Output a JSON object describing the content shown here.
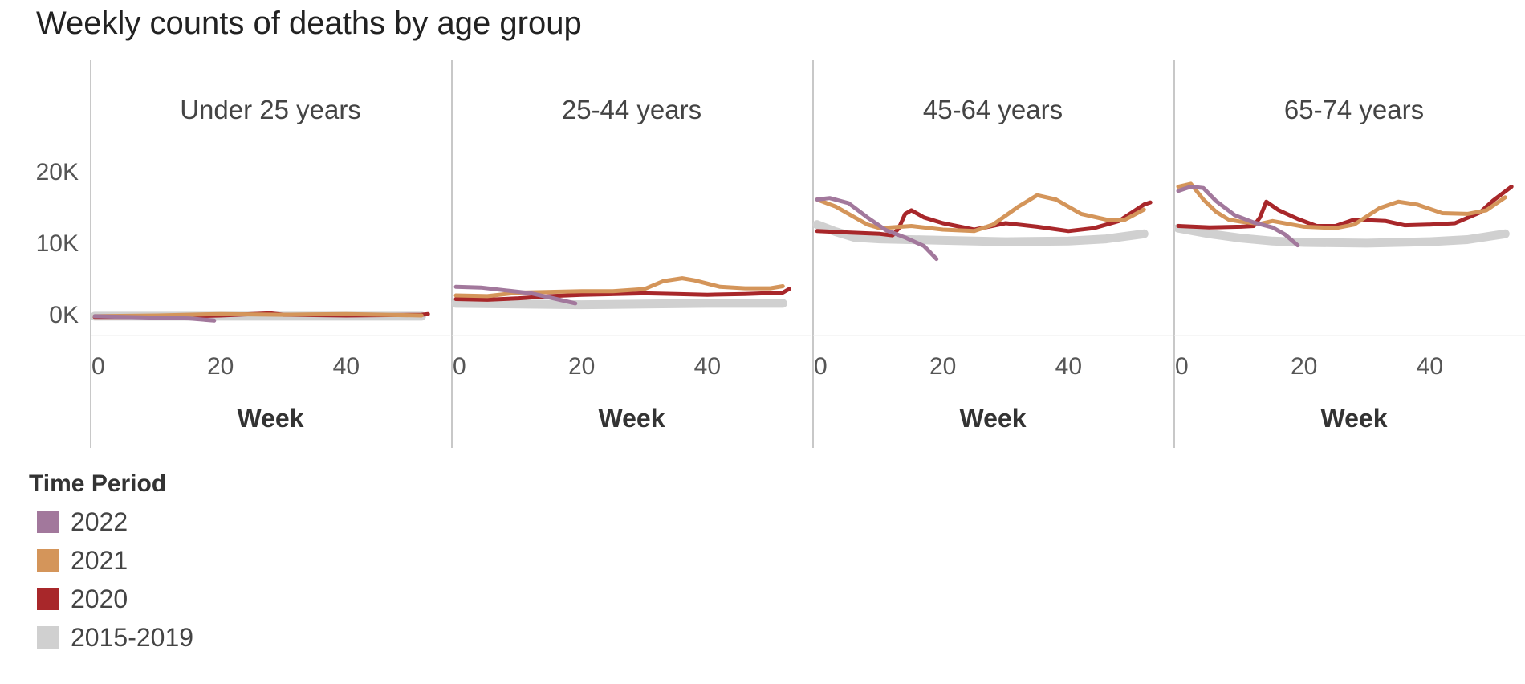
{
  "chart_data": {
    "type": "line",
    "title": "Weekly counts of deaths by age group",
    "xlabel": "Week",
    "xlim": [
      0,
      54
    ],
    "ylim": [
      -3000,
      22000
    ],
    "yticks": [
      0,
      10000,
      20000
    ],
    "ytick_labels": [
      "0K",
      "10K",
      "20K"
    ],
    "xticks": [
      0,
      20,
      40
    ],
    "xtick_labels": [
      "0",
      "20",
      "40"
    ],
    "legend": {
      "title": "Time Period",
      "position": "bottom-left",
      "entries": [
        {
          "label": "2022",
          "color": "#a2789c"
        },
        {
          "label": "2021",
          "color": "#d4955a"
        },
        {
          "label": "2020",
          "color": "#a8272a"
        },
        {
          "label": "2015-2019",
          "color": "#d0d0d0"
        }
      ]
    },
    "panels": [
      {
        "name": "Under 25 years",
        "series": [
          {
            "name": "2015-2019",
            "points": [
              [
                0,
                -300
              ],
              [
                10,
                -300
              ],
              [
                20,
                -300
              ],
              [
                30,
                -300
              ],
              [
                40,
                -300
              ],
              [
                52,
                -300
              ]
            ]
          },
          {
            "name": "2020",
            "points": [
              [
                0,
                -400
              ],
              [
                10,
                -400
              ],
              [
                20,
                -200
              ],
              [
                28,
                100
              ],
              [
                30,
                -100
              ],
              [
                40,
                -200
              ],
              [
                52,
                -100
              ],
              [
                53,
                0
              ]
            ]
          },
          {
            "name": "2021",
            "points": [
              [
                0,
                -300
              ],
              [
                10,
                -200
              ],
              [
                20,
                0
              ],
              [
                30,
                -100
              ],
              [
                40,
                0
              ],
              [
                52,
                -200
              ]
            ]
          },
          {
            "name": "2022",
            "points": [
              [
                0,
                -300
              ],
              [
                10,
                -500
              ],
              [
                15,
                -600
              ],
              [
                19,
                -900
              ]
            ]
          }
        ]
      },
      {
        "name": "25-44 years",
        "series": [
          {
            "name": "2015-2019",
            "points": [
              [
                0,
                1500
              ],
              [
                10,
                1400
              ],
              [
                20,
                1300
              ],
              [
                30,
                1400
              ],
              [
                40,
                1500
              ],
              [
                52,
                1500
              ]
            ]
          },
          {
            "name": "2020",
            "points": [
              [
                0,
                2100
              ],
              [
                5,
                2000
              ],
              [
                10,
                2200
              ],
              [
                15,
                2500
              ],
              [
                20,
                2700
              ],
              [
                30,
                2900
              ],
              [
                35,
                2800
              ],
              [
                40,
                2700
              ],
              [
                46,
                2800
              ],
              [
                52,
                3000
              ],
              [
                53,
                3500
              ]
            ]
          },
          {
            "name": "2021",
            "points": [
              [
                0,
                2600
              ],
              [
                5,
                2500
              ],
              [
                10,
                3000
              ],
              [
                15,
                3100
              ],
              [
                20,
                3200
              ],
              [
                25,
                3200
              ],
              [
                30,
                3500
              ],
              [
                33,
                4600
              ],
              [
                36,
                5000
              ],
              [
                38,
                4700
              ],
              [
                42,
                3800
              ],
              [
                46,
                3600
              ],
              [
                50,
                3600
              ],
              [
                52,
                3900
              ]
            ]
          },
          {
            "name": "2022",
            "points": [
              [
                0,
                3800
              ],
              [
                4,
                3700
              ],
              [
                8,
                3300
              ],
              [
                12,
                2900
              ],
              [
                16,
                2100
              ],
              [
                19,
                1500
              ]
            ]
          }
        ]
      },
      {
        "name": "45-64 years",
        "series": [
          {
            "name": "2015-2019",
            "points": [
              [
                0,
                12500
              ],
              [
                3,
                11500
              ],
              [
                6,
                10700
              ],
              [
                10,
                10500
              ],
              [
                20,
                10300
              ],
              [
                30,
                10100
              ],
              [
                40,
                10200
              ],
              [
                46,
                10500
              ],
              [
                52,
                11200
              ]
            ]
          },
          {
            "name": "2020",
            "points": [
              [
                0,
                11600
              ],
              [
                5,
                11400
              ],
              [
                10,
                11200
              ],
              [
                12,
                11000
              ],
              [
                13,
                12000
              ],
              [
                14,
                14000
              ],
              [
                15,
                14500
              ],
              [
                17,
                13500
              ],
              [
                20,
                12700
              ],
              [
                25,
                11800
              ],
              [
                30,
                12700
              ],
              [
                35,
                12200
              ],
              [
                40,
                11600
              ],
              [
                44,
                12000
              ],
              [
                48,
                13000
              ],
              [
                52,
                15300
              ],
              [
                53,
                15600
              ]
            ]
          },
          {
            "name": "2021",
            "points": [
              [
                0,
                16000
              ],
              [
                3,
                15000
              ],
              [
                6,
                13500
              ],
              [
                8,
                12500
              ],
              [
                10,
                12000
              ],
              [
                15,
                12300
              ],
              [
                20,
                11800
              ],
              [
                25,
                11600
              ],
              [
                28,
                12500
              ],
              [
                32,
                15000
              ],
              [
                35,
                16600
              ],
              [
                38,
                16000
              ],
              [
                42,
                14000
              ],
              [
                46,
                13200
              ],
              [
                49,
                13200
              ],
              [
                52,
                14600
              ]
            ]
          },
          {
            "name": "2022",
            "points": [
              [
                0,
                16000
              ],
              [
                2,
                16200
              ],
              [
                5,
                15500
              ],
              [
                8,
                13500
              ],
              [
                11,
                11700
              ],
              [
                14,
                10700
              ],
              [
                17,
                9500
              ],
              [
                19,
                7700
              ]
            ]
          }
        ]
      },
      {
        "name": "65-74 years",
        "series": [
          {
            "name": "2015-2019",
            "points": [
              [
                0,
                12000
              ],
              [
                5,
                11200
              ],
              [
                10,
                10600
              ],
              [
                15,
                10200
              ],
              [
                20,
                10000
              ],
              [
                30,
                9900
              ],
              [
                40,
                10100
              ],
              [
                46,
                10400
              ],
              [
                52,
                11200
              ]
            ]
          },
          {
            "name": "2020",
            "points": [
              [
                0,
                12300
              ],
              [
                5,
                12100
              ],
              [
                10,
                12200
              ],
              [
                12,
                12300
              ],
              [
                13,
                13500
              ],
              [
                14,
                15700
              ],
              [
                16,
                14500
              ],
              [
                19,
                13300
              ],
              [
                22,
                12300
              ],
              [
                25,
                12300
              ],
              [
                28,
                13200
              ],
              [
                33,
                13000
              ],
              [
                36,
                12400
              ],
              [
                40,
                12500
              ],
              [
                44,
                12700
              ],
              [
                48,
                14200
              ],
              [
                50,
                15800
              ],
              [
                53,
                17800
              ]
            ]
          },
          {
            "name": "2021",
            "points": [
              [
                0,
                17800
              ],
              [
                2,
                18200
              ],
              [
                4,
                16000
              ],
              [
                6,
                14300
              ],
              [
                8,
                13200
              ],
              [
                10,
                12900
              ],
              [
                13,
                12600
              ],
              [
                15,
                13000
              ],
              [
                20,
                12200
              ],
              [
                25,
                12000
              ],
              [
                28,
                12500
              ],
              [
                32,
                14800
              ],
              [
                35,
                15700
              ],
              [
                38,
                15300
              ],
              [
                42,
                14100
              ],
              [
                46,
                14000
              ],
              [
                49,
                14500
              ],
              [
                52,
                16300
              ]
            ]
          },
          {
            "name": "2022",
            "points": [
              [
                0,
                17200
              ],
              [
                2,
                17800
              ],
              [
                4,
                17600
              ],
              [
                6,
                15800
              ],
              [
                9,
                13800
              ],
              [
                12,
                12800
              ],
              [
                15,
                12100
              ],
              [
                17,
                11100
              ],
              [
                19,
                9600
              ]
            ]
          }
        ]
      }
    ]
  }
}
